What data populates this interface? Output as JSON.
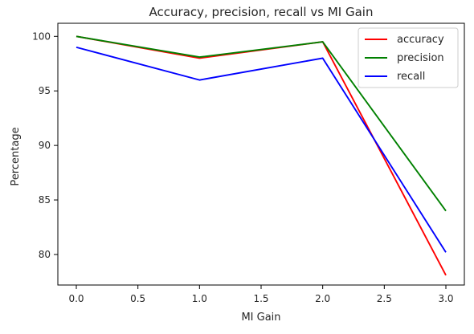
{
  "chart_data": {
    "type": "line",
    "title": "Accuracy, precision, recall vs MI Gain",
    "xlabel": "MI Gain",
    "ylabel": "Percentage",
    "x": [
      0.0,
      1.0,
      2.0,
      3.0
    ],
    "xlim": [
      -0.15,
      3.15
    ],
    "ylim": [
      77.2,
      101.2
    ],
    "xticks": [
      0.0,
      0.5,
      1.0,
      1.5,
      2.0,
      2.5,
      3.0
    ],
    "xtick_labels": [
      "0.0",
      "0.5",
      "1.0",
      "1.5",
      "2.0",
      "2.5",
      "3.0"
    ],
    "yticks": [
      80,
      85,
      90,
      95,
      100
    ],
    "ytick_labels": [
      "80",
      "85",
      "90",
      "95",
      "100"
    ],
    "grid": false,
    "legend_position": "top-right",
    "series": [
      {
        "name": "accuracy",
        "color": "#ff0000",
        "values": [
          100.0,
          98.0,
          99.5,
          78.1
        ]
      },
      {
        "name": "precision",
        "color": "#008000",
        "values": [
          100.0,
          98.1,
          99.5,
          84.0
        ]
      },
      {
        "name": "recall",
        "color": "#0000ff",
        "values": [
          99.0,
          96.0,
          98.0,
          80.2
        ]
      }
    ]
  }
}
